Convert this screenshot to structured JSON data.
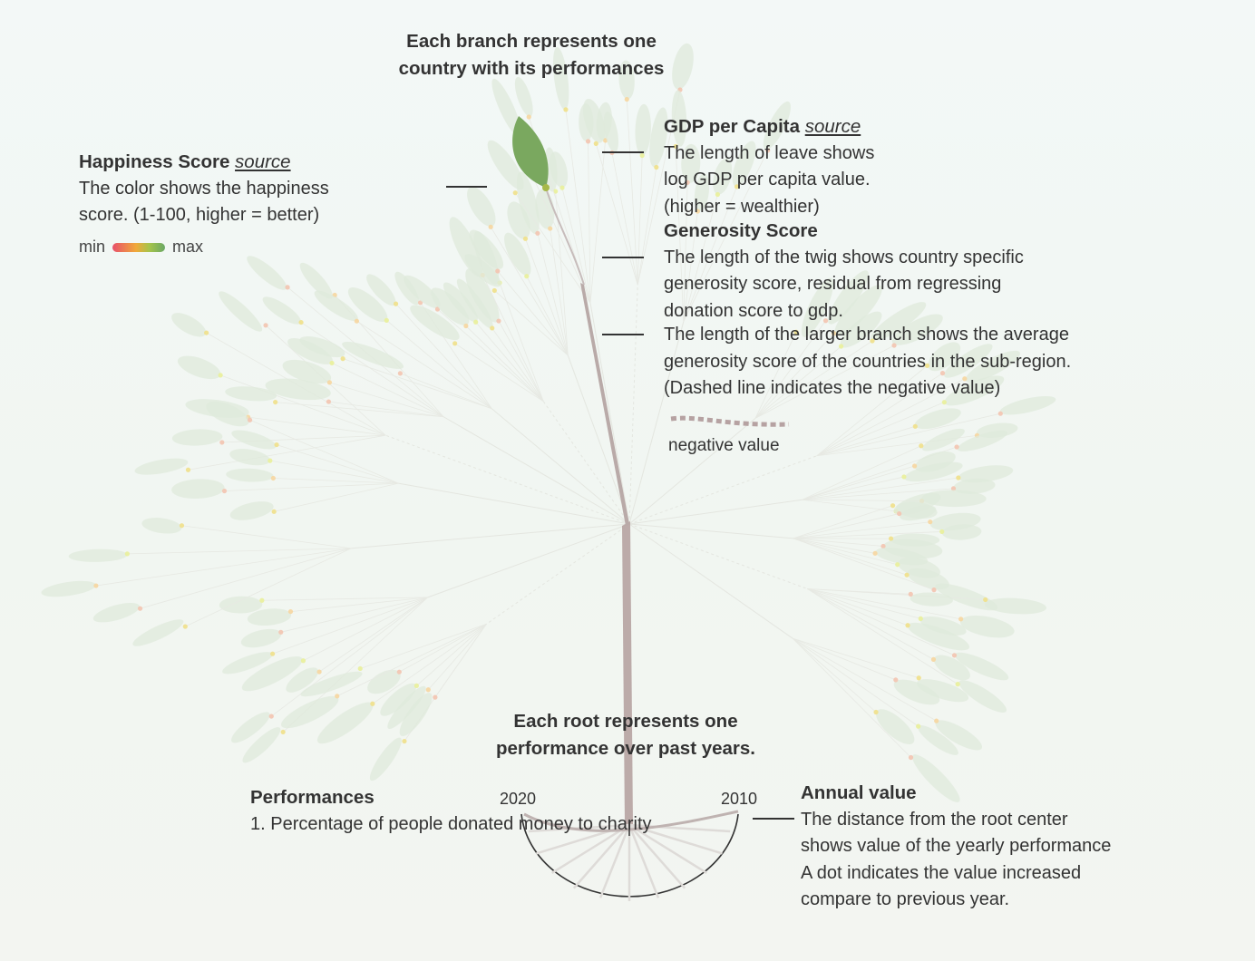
{
  "header": {
    "branch_title_line1": "Each branch represents one",
    "branch_title_line2": "country with its performances"
  },
  "happiness": {
    "title": "Happiness Score",
    "source_label": "source",
    "line1": "The color shows the happiness",
    "line2": "score. (1-100, higher = better)",
    "legend_min": "min",
    "legend_max": "max"
  },
  "gdp": {
    "title": "GDP per Capita",
    "source_label": "source",
    "line1": "The length of leave shows",
    "line2": "log GDP per capita value.",
    "line3": "(higher = wealthier)"
  },
  "generosity": {
    "title": "Generosity Score",
    "line1": "The length of the twig shows country specific",
    "line2": "generosity score, residual from regressing",
    "line3": "donation score to gdp.",
    "branch_line1": "The length of the larger branch shows the average",
    "branch_line2": "generosity score of the countries in the sub-region.",
    "branch_line3": "(Dashed line indicates the negative value)",
    "negative_label": "negative value"
  },
  "root": {
    "title_line1": "Each root represents one",
    "title_line2": "performance over past years.",
    "year_left": "2020",
    "year_right": "2010"
  },
  "performances": {
    "title": "Performances",
    "item1": "1. Percentage of people donated money to charity"
  },
  "annual": {
    "title": "Annual value",
    "line1": "The distance from the root center",
    "line2": "shows value of the yearly performance",
    "line3": "A dot indicates the value increased",
    "line4": "compare to previous year."
  },
  "colors": {
    "leaf_green": "#7aa85f",
    "faded_leaf": "#dfeadb",
    "trunk": "#b7a5a3",
    "dashed_negative": "#b6a2a2",
    "legend_low": "#e8506b",
    "legend_high": "#6aa865"
  }
}
